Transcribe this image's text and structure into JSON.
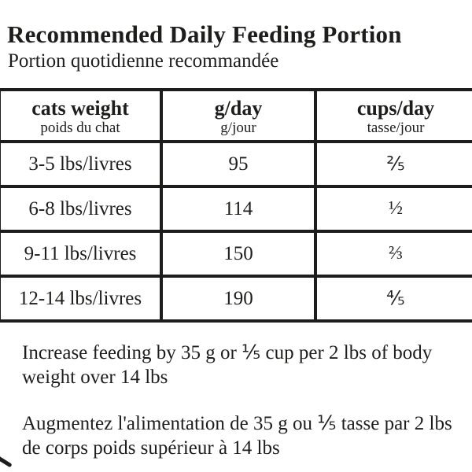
{
  "page": {
    "title": "Recommended Daily Feeding Portion",
    "subtitle": "Portion quotidienne recommandée"
  },
  "table": {
    "columns": [
      {
        "label": "cats weight",
        "sublabel": "poids du chat"
      },
      {
        "label": "g/day",
        "sublabel": "g/jour"
      },
      {
        "label": "cups/day",
        "sublabel": "tasse/jour"
      }
    ],
    "rows": [
      {
        "weight": "3-5 lbs/livres",
        "grams": "95",
        "cups": "⅖"
      },
      {
        "weight": "6-8 lbs/livres",
        "grams": "114",
        "cups": "½"
      },
      {
        "weight": "9-11 lbs/livres",
        "grams": "150",
        "cups": "⅔"
      },
      {
        "weight": "12-14 lbs/livres",
        "grams": "190",
        "cups": "⅘"
      }
    ]
  },
  "notes": {
    "english": "Increase feeding by 35 g or ⅕ cup per 2 lbs of body weight over 14 lbs",
    "french": "Augmentez l'alimentation de 35 g ou ⅕ tasse par 2 lbs de corps poids supérieur à 14 lbs"
  },
  "colors": {
    "text": "#1d1d1b",
    "background": "#ffffff",
    "border": "#1d1d1b"
  }
}
